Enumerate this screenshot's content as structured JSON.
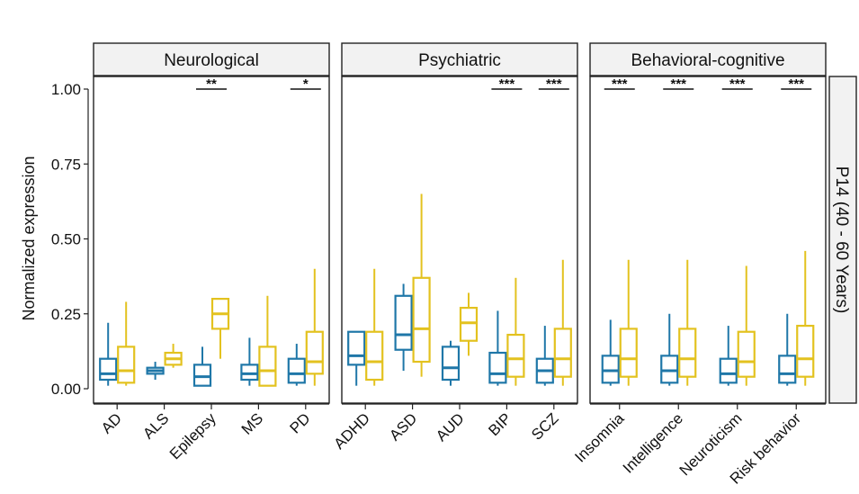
{
  "chart_data": {
    "type": "box",
    "ylabel": "Normalized expression",
    "ylim": [
      0,
      1
    ],
    "yticks": [
      "0.00",
      "0.25",
      "0.50",
      "0.75",
      "1.00"
    ],
    "row_strip": "P14 (40 - 60 Years)",
    "colors": {
      "series_a": "#1f77a8",
      "series_b": "#e3c21f"
    },
    "panels": [
      {
        "title": "Neurological",
        "categories": [
          {
            "name": "AD",
            "sig": "",
            "a": {
              "min": 0.01,
              "q1": 0.03,
              "med": 0.05,
              "q3": 0.1,
              "max": 0.22
            },
            "b": {
              "min": 0.01,
              "q1": 0.02,
              "med": 0.06,
              "q3": 0.14,
              "max": 0.29
            }
          },
          {
            "name": "ALS",
            "sig": "",
            "a": {
              "min": 0.03,
              "q1": 0.05,
              "med": 0.06,
              "q3": 0.07,
              "max": 0.09
            },
            "b": {
              "min": 0.07,
              "q1": 0.08,
              "med": 0.1,
              "q3": 0.12,
              "max": 0.15
            }
          },
          {
            "name": "Epilepsy",
            "sig": "**",
            "a": {
              "min": 0.01,
              "q1": 0.01,
              "med": 0.04,
              "q3": 0.08,
              "max": 0.14
            },
            "b": {
              "min": 0.1,
              "q1": 0.2,
              "med": 0.25,
              "q3": 0.3,
              "max": 0.3
            }
          },
          {
            "name": "MS",
            "sig": "",
            "a": {
              "min": 0.01,
              "q1": 0.03,
              "med": 0.05,
              "q3": 0.08,
              "max": 0.17
            },
            "b": {
              "min": 0.01,
              "q1": 0.01,
              "med": 0.06,
              "q3": 0.14,
              "max": 0.31
            }
          },
          {
            "name": "PD",
            "sig": "*",
            "a": {
              "min": 0.01,
              "q1": 0.02,
              "med": 0.05,
              "q3": 0.1,
              "max": 0.15
            },
            "b": {
              "min": 0.01,
              "q1": 0.05,
              "med": 0.09,
              "q3": 0.19,
              "max": 0.4
            }
          }
        ]
      },
      {
        "title": "Psychiatric",
        "categories": [
          {
            "name": "ADHD",
            "sig": "",
            "a": {
              "min": 0.01,
              "q1": 0.08,
              "med": 0.11,
              "q3": 0.19,
              "max": 0.19
            },
            "b": {
              "min": 0.01,
              "q1": 0.03,
              "med": 0.09,
              "q3": 0.19,
              "max": 0.4
            }
          },
          {
            "name": "ASD",
            "sig": "",
            "a": {
              "min": 0.06,
              "q1": 0.13,
              "med": 0.18,
              "q3": 0.31,
              "max": 0.35
            },
            "b": {
              "min": 0.04,
              "q1": 0.09,
              "med": 0.2,
              "q3": 0.37,
              "max": 0.65
            }
          },
          {
            "name": "AUD",
            "sig": "",
            "a": {
              "min": 0.01,
              "q1": 0.03,
              "med": 0.07,
              "q3": 0.14,
              "max": 0.16
            },
            "b": {
              "min": 0.11,
              "q1": 0.16,
              "med": 0.22,
              "q3": 0.27,
              "max": 0.32
            }
          },
          {
            "name": "BIP",
            "sig": "***",
            "a": {
              "min": 0.01,
              "q1": 0.02,
              "med": 0.05,
              "q3": 0.12,
              "max": 0.26
            },
            "b": {
              "min": 0.01,
              "q1": 0.04,
              "med": 0.1,
              "q3": 0.18,
              "max": 0.37
            }
          },
          {
            "name": "SCZ",
            "sig": "***",
            "a": {
              "min": 0.01,
              "q1": 0.02,
              "med": 0.06,
              "q3": 0.1,
              "max": 0.21
            },
            "b": {
              "min": 0.01,
              "q1": 0.04,
              "med": 0.1,
              "q3": 0.2,
              "max": 0.43
            }
          }
        ]
      },
      {
        "title": "Behavioral-cognitive",
        "categories": [
          {
            "name": "Insomnia",
            "sig": "***",
            "a": {
              "min": 0.01,
              "q1": 0.02,
              "med": 0.06,
              "q3": 0.11,
              "max": 0.23
            },
            "b": {
              "min": 0.01,
              "q1": 0.04,
              "med": 0.1,
              "q3": 0.2,
              "max": 0.43
            }
          },
          {
            "name": "Intelligence",
            "sig": "***",
            "a": {
              "min": 0.01,
              "q1": 0.02,
              "med": 0.06,
              "q3": 0.11,
              "max": 0.25
            },
            "b": {
              "min": 0.01,
              "q1": 0.04,
              "med": 0.1,
              "q3": 0.2,
              "max": 0.43
            }
          },
          {
            "name": "Neuroticism",
            "sig": "***",
            "a": {
              "min": 0.01,
              "q1": 0.02,
              "med": 0.05,
              "q3": 0.1,
              "max": 0.21
            },
            "b": {
              "min": 0.01,
              "q1": 0.04,
              "med": 0.09,
              "q3": 0.19,
              "max": 0.41
            }
          },
          {
            "name": "Risk behavior",
            "sig": "***",
            "a": {
              "min": 0.01,
              "q1": 0.02,
              "med": 0.05,
              "q3": 0.11,
              "max": 0.25
            },
            "b": {
              "min": 0.01,
              "q1": 0.04,
              "med": 0.1,
              "q3": 0.21,
              "max": 0.46
            }
          }
        ]
      }
    ]
  }
}
